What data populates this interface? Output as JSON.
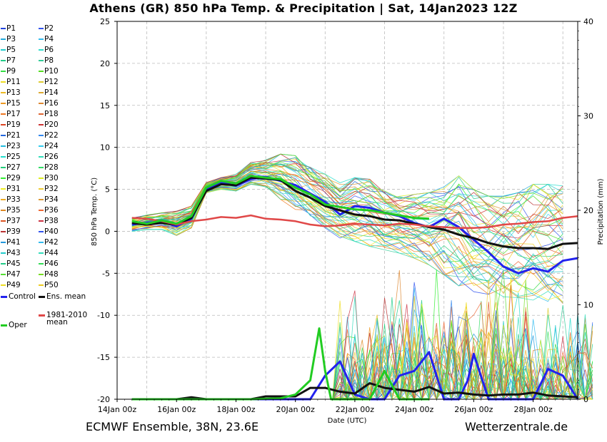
{
  "title": "Athens  (GR)  850 hPa Temp. & Precipitation | Sat, 14Jan2023 12Z",
  "footer_left": "ECMWF Ensemble, 38N, 23.6E",
  "footer_right": "Wetterzentrale.de",
  "chart_data": {
    "type": "line",
    "xlabel": "Date (UTC)",
    "ylabel": "850 hPa Temp. (°C)",
    "y2label": "Precipitation (mm)",
    "ylim": [
      -20,
      25
    ],
    "y2lim": [
      0,
      40
    ],
    "xlim_days": [
      0,
      15.5
    ],
    "yticks": [
      25,
      20,
      15,
      10,
      5,
      0,
      -5,
      -10,
      -15,
      -20
    ],
    "y2ticks": [
      40,
      30,
      20,
      10,
      0
    ],
    "xticks": [
      "14Jan 00z",
      "16Jan 00z",
      "18Jan 00z",
      "20Jan 00z",
      "22Jan 00z",
      "24Jan 00z",
      "26Jan 00z",
      "28Jan 00z"
    ],
    "grid": true,
    "legend_position": "left",
    "control_color": "#2222ee",
    "mean_color": "#111111",
    "clim_color": "#e04848",
    "oper_color": "#22cc22",
    "series": [
      {
        "name": "Control",
        "x": [
          0.5,
          1,
          1.5,
          2,
          2.5,
          3,
          3.5,
          4,
          4.5,
          5,
          5.5,
          6,
          6.5,
          7,
          7.5,
          8,
          8.5,
          9,
          9.5,
          10,
          10.5,
          11,
          11.5,
          12,
          12.5,
          13,
          13.5,
          14,
          14.5,
          15,
          15.5
        ],
        "values": [
          0.8,
          1,
          1.2,
          0.6,
          1.5,
          5,
          5.8,
          5.4,
          6.2,
          6.5,
          6,
          5.5,
          4.5,
          3.5,
          2,
          3,
          2.8,
          2.2,
          1.8,
          1,
          0.5,
          1.5,
          0.5,
          -1,
          -2.5,
          -4.2,
          -5,
          -4.4,
          -4.8,
          -3.5,
          -3.2
        ]
      },
      {
        "name": "Ens. mean",
        "x": [
          0.5,
          1,
          1.5,
          2,
          2.5,
          3,
          3.5,
          4,
          4.5,
          5,
          5.5,
          6,
          6.5,
          7,
          7.5,
          8,
          8.5,
          9,
          9.5,
          10,
          10.5,
          11,
          11.5,
          12,
          12.5,
          13,
          13.5,
          14,
          14.5,
          15,
          15.5
        ],
        "values": [
          1,
          0.8,
          1,
          0.8,
          1.6,
          4.8,
          5.6,
          5.5,
          6.4,
          6.3,
          6.1,
          4.8,
          4,
          3,
          2.5,
          2,
          1.8,
          1.4,
          1.3,
          0.9,
          0.5,
          0.2,
          -0.4,
          -0.8,
          -1.4,
          -1.8,
          -2,
          -2,
          -2.1,
          -1.5,
          -1.4
        ]
      },
      {
        "name": "1981-2010 mean",
        "x": [
          0.5,
          1,
          1.5,
          2,
          2.5,
          3,
          3.5,
          4,
          4.5,
          5,
          5.5,
          6,
          6.5,
          7,
          7.5,
          8,
          8.5,
          9,
          9.5,
          10,
          10.5,
          11,
          11.5,
          12,
          12.5,
          13,
          13.5,
          14,
          14.5,
          15,
          15.5
        ],
        "values": [
          1.6,
          1.5,
          1.2,
          0.8,
          1.2,
          1.4,
          1.7,
          1.6,
          1.9,
          1.5,
          1.4,
          1.2,
          0.8,
          0.6,
          0.7,
          0.9,
          0.8,
          0.7,
          0.9,
          0.8,
          0.6,
          0.5,
          0.4,
          0.4,
          0.5,
          0.8,
          0.9,
          1.1,
          1.2,
          1.6,
          1.8
        ]
      },
      {
        "name": "Oper",
        "x": [
          0.5,
          1,
          1.5,
          2,
          2.5,
          3,
          3.5,
          4,
          4.5,
          5,
          5.5,
          6,
          6.5,
          7,
          7.5,
          8,
          8.5,
          9,
          9.5,
          10,
          10.5
        ],
        "values": [
          1.2,
          0.9,
          1.3,
          0.9,
          1.8,
          5.2,
          6,
          5.7,
          6.6,
          6.4,
          6.2,
          5.2,
          4.4,
          3.2,
          2.9,
          2.6,
          2.5,
          2.2,
          1.9,
          1.6,
          1.5
        ]
      }
    ],
    "precipitation": [
      {
        "name": "Control",
        "x": [
          0.5,
          1.5,
          2.5,
          3.5,
          4.5,
          5.5,
          6.5,
          7,
          7.5,
          8,
          8.5,
          9,
          9.5,
          10,
          10.5,
          11,
          11.5,
          11.8,
          12,
          12.5,
          13,
          13.5,
          14,
          14.5,
          15,
          15.5
        ],
        "values": [
          0,
          0,
          0,
          0,
          0,
          0,
          0,
          2.5,
          4,
          0.5,
          0,
          0,
          2.5,
          3,
          5,
          0,
          0,
          2,
          4.8,
          0,
          0,
          0,
          0,
          3.2,
          2.5,
          0
        ]
      },
      {
        "name": "Ens. mean",
        "x": [
          0.5,
          1.5,
          2,
          2.5,
          3,
          4,
          4.5,
          5,
          5.5,
          6,
          6.5,
          7,
          7.5,
          8,
          8.5,
          9,
          9.5,
          10,
          10.5,
          11,
          11.5,
          12,
          12.5,
          13,
          13.5,
          14,
          14.5,
          15,
          15.5
        ],
        "values": [
          0,
          0,
          0,
          0.2,
          0,
          0,
          0,
          0.3,
          0.3,
          0.3,
          1.2,
          1.2,
          0.8,
          0.6,
          1.7,
          1.2,
          1,
          0.8,
          1.3,
          0.6,
          0.7,
          0.5,
          0.4,
          0.5,
          0.5,
          0.7,
          0.4,
          0.3,
          0.2
        ]
      },
      {
        "name": "Oper",
        "x": [
          0.5,
          1.5,
          2.5,
          3.5,
          4.5,
          5.5,
          6,
          6.5,
          6.8,
          7,
          7.2,
          7.5,
          8,
          8.5,
          9,
          9.5,
          10,
          10.5
        ],
        "values": [
          0,
          0,
          0,
          0,
          0,
          0.1,
          0.5,
          2,
          7.5,
          3,
          0,
          0,
          0,
          0,
          3,
          0,
          0,
          0
        ]
      }
    ],
    "ensemble_spread": {
      "low": [
        0,
        0.2,
        0.2,
        -0.5,
        0.4,
        4.6,
        5,
        4.8,
        5.6,
        5.2,
        3.8,
        2.6,
        1.6,
        0.4,
        -0.8,
        -1.2,
        -1.8,
        -2.2,
        -2.6,
        -3.2,
        -4,
        -5.2,
        -6.5,
        -7.2,
        -7.5,
        -7.8,
        -7.9,
        -8.2,
        -8.4,
        -8.6
      ],
      "high": [
        1.6,
        2,
        2.2,
        2.4,
        3,
        5.8,
        6.4,
        6.8,
        8.2,
        8.5,
        9.2,
        9,
        7.8,
        6.8,
        5.8,
        6.4,
        6.2,
        4.8,
        4.2,
        4.4,
        4.6,
        5.4,
        6.6,
        5,
        4.2,
        4.2,
        4.6,
        5.6,
        5.6,
        5.4
      ]
    }
  },
  "legend": {
    "items": [
      {
        "label": "P1",
        "color": "#2244dd"
      },
      {
        "label": "P2",
        "color": "#3355ee"
      },
      {
        "label": "P3",
        "color": "#22aadd"
      },
      {
        "label": "P4",
        "color": "#33bbee"
      },
      {
        "label": "P5",
        "color": "#22cccc"
      },
      {
        "label": "P6",
        "color": "#33ddcc"
      },
      {
        "label": "P7",
        "color": "#22cc88"
      },
      {
        "label": "P8",
        "color": "#33cc99"
      },
      {
        "label": "P9",
        "color": "#33dd44"
      },
      {
        "label": "P10",
        "color": "#55dd22"
      },
      {
        "label": "P11",
        "color": "#eedd22"
      },
      {
        "label": "P12",
        "color": "#ddcc33"
      },
      {
        "label": "P13",
        "color": "#eebb22"
      },
      {
        "label": "P14",
        "color": "#ddaa33"
      },
      {
        "label": "P15",
        "color": "#ee9922"
      },
      {
        "label": "P16",
        "color": "#dd8833"
      },
      {
        "label": "P17",
        "color": "#ee7722"
      },
      {
        "label": "P18",
        "color": "#dd6633"
      },
      {
        "label": "P19",
        "color": "#dd4422"
      },
      {
        "label": "P20",
        "color": "#cc3333"
      },
      {
        "label": "P21",
        "color": "#2266dd"
      },
      {
        "label": "P22",
        "color": "#3388ee"
      },
      {
        "label": "P23",
        "color": "#22bbdd"
      },
      {
        "label": "P24",
        "color": "#33ccee"
      },
      {
        "label": "P25",
        "color": "#22ddcc"
      },
      {
        "label": "P26",
        "color": "#33ddbb"
      },
      {
        "label": "P27",
        "color": "#22cc77"
      },
      {
        "label": "P28",
        "color": "#33dd66"
      },
      {
        "label": "P29",
        "color": "#33ee33"
      },
      {
        "label": "P30",
        "color": "#ddee22"
      },
      {
        "label": "P31",
        "color": "#eeee22"
      },
      {
        "label": "P32",
        "color": "#eecc33"
      },
      {
        "label": "P33",
        "color": "#eeaa22"
      },
      {
        "label": "P34",
        "color": "#dd9933"
      },
      {
        "label": "P35",
        "color": "#dd8822"
      },
      {
        "label": "P36",
        "color": "#ee6633"
      },
      {
        "label": "P37",
        "color": "#dd5522"
      },
      {
        "label": "P38",
        "color": "#cc3344"
      },
      {
        "label": "P39",
        "color": "#bb3333"
      },
      {
        "label": "P40",
        "color": "#3355ee"
      },
      {
        "label": "P41",
        "color": "#2299dd"
      },
      {
        "label": "P42",
        "color": "#33bbee"
      },
      {
        "label": "P43",
        "color": "#22cccc"
      },
      {
        "label": "P44",
        "color": "#33ddbb"
      },
      {
        "label": "P45",
        "color": "#22cc88"
      },
      {
        "label": "P46",
        "color": "#33dd55"
      },
      {
        "label": "P47",
        "color": "#55dd33"
      },
      {
        "label": "P48",
        "color": "#77dd22"
      },
      {
        "label": "P49",
        "color": "#eedd22"
      },
      {
        "label": "P50",
        "color": "#eecc22"
      }
    ],
    "control_label": "Control",
    "mean_label": "Ens. mean",
    "clim_label": "1981-2010\nmean",
    "oper_label": "Oper"
  }
}
